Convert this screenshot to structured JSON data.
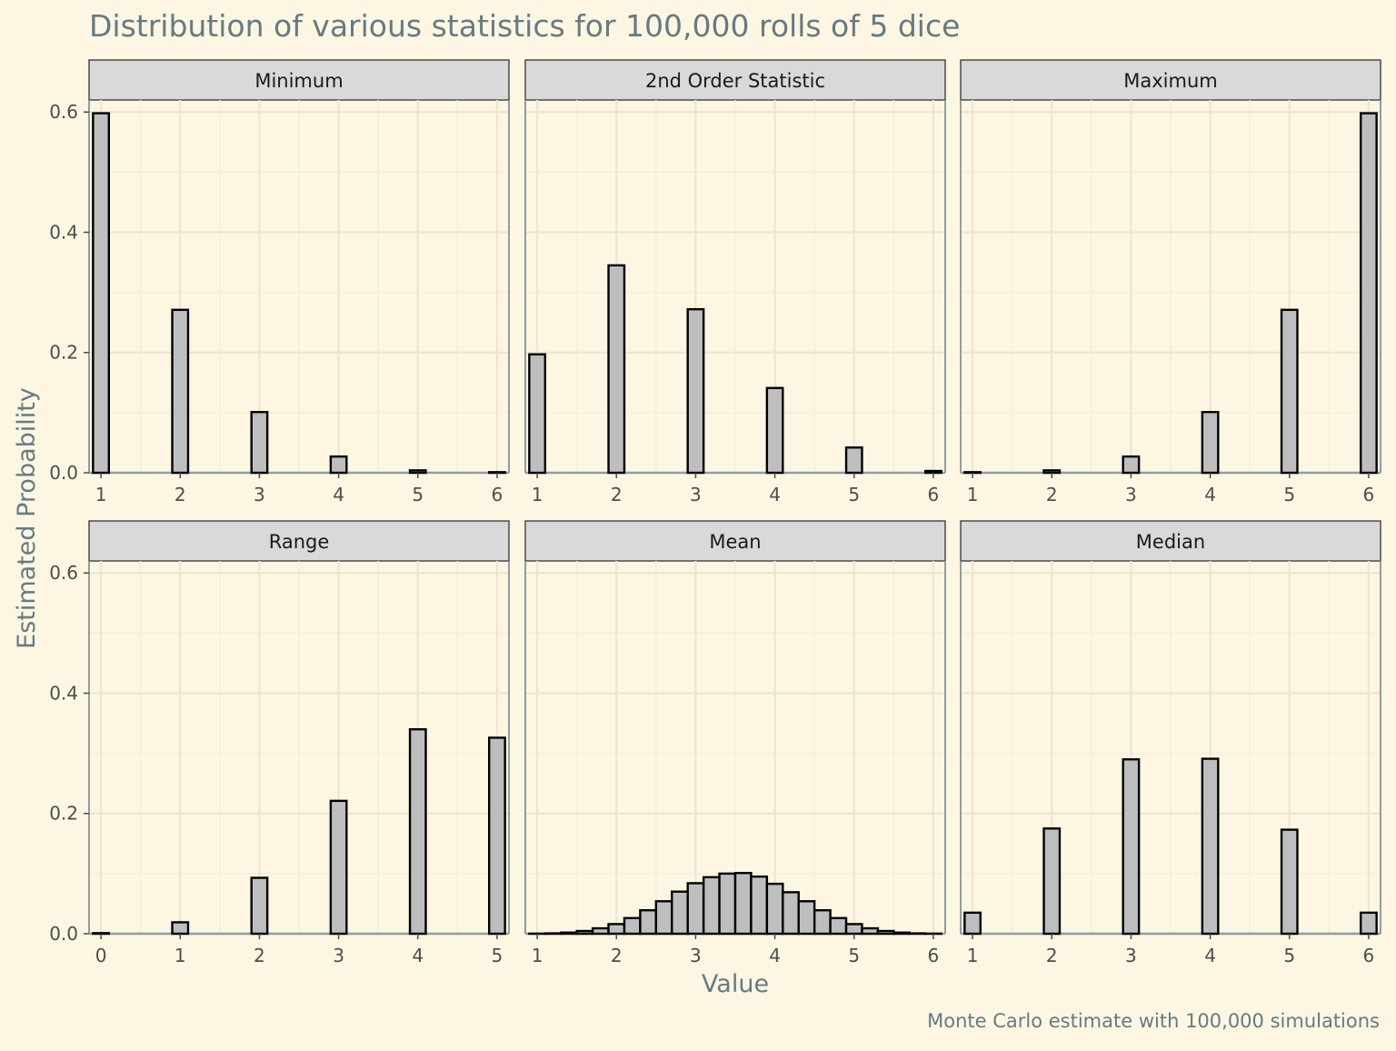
{
  "chart_data": {
    "type": "bar",
    "title": "Distribution of various statistics for 100,000 rolls of 5 dice",
    "caption": "Monte Carlo estimate with 100,000 simulations",
    "xlabel": "Value",
    "ylabel": "Estimated Probability",
    "ylim": [
      0,
      0.62
    ],
    "yticks": [
      0.0,
      0.2,
      0.4,
      0.6
    ],
    "ytick_labels": [
      "0.0",
      "0.2",
      "0.4",
      "0.6"
    ],
    "grid": true,
    "facets": [
      {
        "name": "Minimum",
        "xlim": [
          0.85,
          6.15
        ],
        "xticks": [
          1,
          2,
          3,
          4,
          5,
          6
        ],
        "bar_width": 0.2,
        "x": [
          1,
          2,
          3,
          4,
          5,
          6
        ],
        "values": [
          0.598,
          0.271,
          0.101,
          0.027,
          0.004,
          0.001
        ]
      },
      {
        "name": "2nd Order Statistic",
        "xlim": [
          0.85,
          6.15
        ],
        "xticks": [
          1,
          2,
          3,
          4,
          5,
          6
        ],
        "bar_width": 0.2,
        "x": [
          1,
          2,
          3,
          4,
          5,
          6
        ],
        "values": [
          0.197,
          0.345,
          0.272,
          0.141,
          0.042,
          0.003
        ]
      },
      {
        "name": "Maximum",
        "xlim": [
          0.85,
          6.15
        ],
        "xticks": [
          1,
          2,
          3,
          4,
          5,
          6
        ],
        "bar_width": 0.2,
        "x": [
          1,
          2,
          3,
          4,
          5,
          6
        ],
        "values": [
          0.001,
          0.004,
          0.027,
          0.101,
          0.271,
          0.598
        ]
      },
      {
        "name": "Range",
        "xlim": [
          -0.15,
          5.15
        ],
        "xticks": [
          0,
          1,
          2,
          3,
          4,
          5
        ],
        "bar_width": 0.2,
        "x": [
          0,
          1,
          2,
          3,
          4,
          5
        ],
        "values": [
          0.001,
          0.019,
          0.093,
          0.221,
          0.34,
          0.326
        ]
      },
      {
        "name": "Mean",
        "xlim": [
          0.85,
          6.15
        ],
        "xticks": [
          1,
          2,
          3,
          4,
          5,
          6
        ],
        "bar_width": 0.2,
        "x": [
          1.0,
          1.2,
          1.4,
          1.6,
          1.8,
          2.0,
          2.2,
          2.4,
          2.6,
          2.8,
          3.0,
          3.2,
          3.4,
          3.6,
          3.8,
          4.0,
          4.2,
          4.4,
          4.6,
          4.8,
          5.0,
          5.2,
          5.4,
          5.6,
          5.8,
          6.0
        ],
        "values": [
          0.0001,
          0.0006,
          0.0019,
          0.0045,
          0.009,
          0.016,
          0.026,
          0.039,
          0.054,
          0.07,
          0.084,
          0.094,
          0.1,
          0.101,
          0.095,
          0.083,
          0.069,
          0.054,
          0.039,
          0.026,
          0.016,
          0.009,
          0.0045,
          0.0019,
          0.0006,
          0.0001
        ]
      },
      {
        "name": "Median",
        "xlim": [
          0.85,
          6.15
        ],
        "xticks": [
          1,
          2,
          3,
          4,
          5,
          6
        ],
        "bar_width": 0.2,
        "x": [
          1,
          2,
          3,
          4,
          5,
          6
        ],
        "values": [
          0.035,
          0.175,
          0.29,
          0.291,
          0.173,
          0.035
        ]
      }
    ]
  },
  "colors": {
    "background": "#fdf6e3",
    "strip_fill": "#d9d9d9",
    "strip_border": "#333333",
    "grid_major": "#ede5cf",
    "grid_minor": "#f5eedb",
    "axis_line": "#8f9ea1",
    "bar_fill": "#bebebe",
    "bar_stroke": "#000000",
    "title_color": "#657b83",
    "tick_color": "#4d4d4d"
  }
}
